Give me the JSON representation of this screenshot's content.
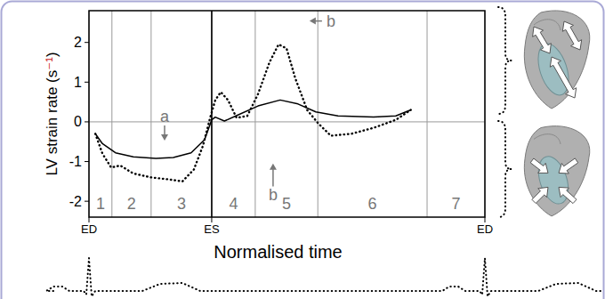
{
  "chart_data": {
    "type": "line",
    "ylabel": "LV strain rate (s⁻¹)",
    "xlabel": "Normalised time",
    "xlim": [
      0,
      1
    ],
    "ylim": [
      -2.4,
      2.8
    ],
    "yticks": [
      -2,
      -1,
      0,
      1,
      2
    ],
    "xticks": [
      {
        "value": 0,
        "label": "ED"
      },
      {
        "value": 0.31,
        "label": "ES"
      },
      {
        "value": 1,
        "label": "ED"
      }
    ],
    "tick_labels": true,
    "grid": false,
    "phases": {
      "labels": [
        "1",
        "2",
        "3",
        "4",
        "5",
        "6",
        "7"
      ],
      "bounds": [
        0,
        0.058,
        0.157,
        0.31,
        0.42,
        0.578,
        0.854,
        1
      ]
    },
    "series": [
      {
        "color": "#000000",
        "line_style": "solid",
        "x": [
          0.016,
          0.034,
          0.067,
          0.112,
          0.169,
          0.213,
          0.258,
          0.292,
          0.31,
          0.319,
          0.342,
          0.371,
          0.427,
          0.483,
          0.528,
          0.573,
          0.629,
          0.719,
          0.775,
          0.813
        ],
        "values": [
          -0.3,
          -0.55,
          -0.78,
          -0.88,
          -0.92,
          -0.9,
          -0.78,
          -0.45,
          0.05,
          0.12,
          0.02,
          0.15,
          0.4,
          0.55,
          0.45,
          0.25,
          0.15,
          0.12,
          0.15,
          0.3
        ]
      },
      {
        "color": "#000000",
        "line_style": "dotted",
        "x": [
          0.016,
          0.034,
          0.056,
          0.079,
          0.112,
          0.157,
          0.202,
          0.236,
          0.265,
          0.288,
          0.306,
          0.319,
          0.333,
          0.351,
          0.373,
          0.4,
          0.427,
          0.456,
          0.479,
          0.499,
          0.521,
          0.551,
          0.58,
          0.611,
          0.663,
          0.719,
          0.775,
          0.813
        ],
        "values": [
          -0.3,
          -0.8,
          -1.15,
          -1.1,
          -1.3,
          -1.4,
          -1.45,
          -1.5,
          -1.2,
          -0.6,
          0.1,
          0.55,
          0.75,
          0.55,
          0.1,
          0.15,
          0.7,
          1.5,
          1.95,
          1.85,
          1.1,
          0.3,
          -0.05,
          -0.35,
          -0.3,
          -0.15,
          0.05,
          0.3
        ]
      }
    ],
    "annotations": [
      {
        "text": "a",
        "x": 0.191,
        "y": 0.13,
        "to": [
          0.191,
          -0.47
        ]
      },
      {
        "text": "b",
        "x": 0.465,
        "y": -1.85,
        "to": [
          0.465,
          -1.05
        ]
      },
      {
        "text": "b",
        "x": 0.611,
        "y": 2.54,
        "to": [
          0.557,
          2.54
        ]
      }
    ]
  }
}
